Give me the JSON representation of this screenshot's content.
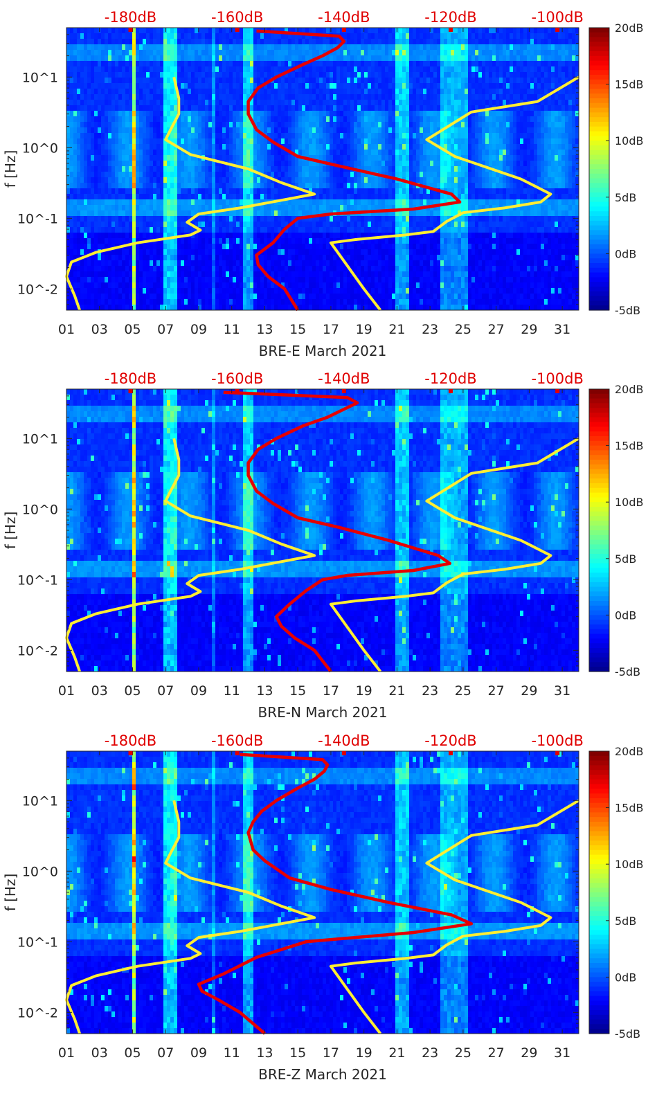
{
  "panels": [
    {
      "id": "east",
      "xlabel": "BRE-E March 2021",
      "ylabel": "f [Hz]",
      "top_labels": [
        "-180dB",
        "-160dB",
        "-140dB",
        "-120dB",
        "-100dB"
      ],
      "x_ticks": [
        "01",
        "03",
        "05",
        "07",
        "09",
        "11",
        "13",
        "15",
        "17",
        "19",
        "21",
        "23",
        "25",
        "27",
        "29",
        "31"
      ],
      "y_ticks": [
        "10^-2",
        "10^-1",
        "10^0",
        "10^1"
      ],
      "colorbar_labels": [
        "20dB",
        "15dB",
        "10dB",
        "5dB",
        "0dB",
        "-5dB"
      ]
    },
    {
      "id": "north",
      "xlabel": "BRE-N March 2021",
      "ylabel": "f [Hz]",
      "top_labels": [
        "-180dB",
        "-160dB",
        "-140dB",
        "-120dB",
        "-100dB"
      ],
      "x_ticks": [
        "01",
        "03",
        "05",
        "07",
        "09",
        "11",
        "13",
        "15",
        "17",
        "19",
        "21",
        "23",
        "25",
        "27",
        "29",
        "31"
      ],
      "y_ticks": [
        "10^-2",
        "10^-1",
        "10^0",
        "10^1"
      ],
      "colorbar_labels": [
        "20dB",
        "15dB",
        "10dB",
        "5dB",
        "0dB",
        "-5dB"
      ]
    },
    {
      "id": "vertical",
      "xlabel": "BRE-Z March 2021",
      "ylabel": "f [Hz]",
      "top_labels": [
        "-180dB",
        "-160dB",
        "-140dB",
        "-120dB",
        "-100dB"
      ],
      "x_ticks": [
        "01",
        "03",
        "05",
        "07",
        "09",
        "11",
        "13",
        "15",
        "17",
        "19",
        "21",
        "23",
        "25",
        "27",
        "29",
        "31"
      ],
      "y_ticks": [
        "10^-2",
        "10^-1",
        "10^0",
        "10^1"
      ],
      "colorbar_labels": [
        "20dB",
        "15dB",
        "10dB",
        "5dB",
        "0dB",
        "-5dB"
      ]
    }
  ],
  "chart_data": [
    {
      "type": "heatmap",
      "title": "",
      "xlabel": "BRE-E March 2021",
      "ylabel": "f [Hz]",
      "x_unit": "day of March 2021",
      "xlim": [
        1,
        32
      ],
      "ylim": [
        0.005,
        50
      ],
      "y_scale": "log",
      "color_range_db": [
        -5,
        20
      ],
      "colormap": "jet",
      "top_axis": {
        "label_values_db": [
          -180,
          -160,
          -140,
          -120,
          -100
        ],
        "range_db": [
          -192,
          -96
        ]
      },
      "overlays": [
        {
          "name": "noise model low (yellow)",
          "color": "#ffee33",
          "points": [
            [
              1.8,
              0.005
            ],
            [
              1.5,
              0.008
            ],
            [
              1.0,
              0.015
            ],
            [
              1.3,
              0.024
            ],
            [
              2.8,
              0.033
            ],
            [
              5.3,
              0.045
            ],
            [
              8.5,
              0.058
            ],
            [
              9.1,
              0.068
            ],
            [
              8.3,
              0.088
            ],
            [
              9.0,
              0.115
            ],
            [
              11.5,
              0.14
            ],
            [
              16.0,
              0.22
            ],
            [
              14.0,
              0.32
            ],
            [
              12.0,
              0.5
            ],
            [
              8.5,
              0.8
            ],
            [
              7.0,
              1.3
            ],
            [
              7.3,
              1.8
            ],
            [
              7.8,
              3.0
            ],
            [
              7.8,
              5.0
            ],
            [
              7.5,
              10.0
            ]
          ]
        },
        {
          "name": "noise model high (yellow)",
          "color": "#ffee33",
          "points": [
            [
              20.0,
              0.005
            ],
            [
              19.0,
              0.01
            ],
            [
              17.0,
              0.045
            ],
            [
              18.5,
              0.05
            ],
            [
              21.5,
              0.058
            ],
            [
              23.2,
              0.065
            ],
            [
              24.0,
              0.09
            ],
            [
              25.0,
              0.12
            ],
            [
              27.5,
              0.14
            ],
            [
              29.7,
              0.17
            ],
            [
              30.3,
              0.22
            ],
            [
              28.5,
              0.36
            ],
            [
              24.5,
              0.75
            ],
            [
              22.8,
              1.3
            ],
            [
              25.5,
              3.2
            ],
            [
              29.5,
              4.5
            ],
            [
              32.0,
              10.0
            ]
          ]
        },
        {
          "name": "reference PSD (red)",
          "color": "#e60000",
          "points": [
            [
              15.0,
              0.005
            ],
            [
              14.2,
              0.01
            ],
            [
              13.2,
              0.015
            ],
            [
              12.6,
              0.022
            ],
            [
              12.5,
              0.03
            ],
            [
              13.5,
              0.045
            ],
            [
              14.2,
              0.07
            ],
            [
              15.0,
              0.1
            ],
            [
              17.0,
              0.115
            ],
            [
              22.0,
              0.135
            ],
            [
              24.8,
              0.17
            ],
            [
              24.3,
              0.22
            ],
            [
              21.0,
              0.36
            ],
            [
              17.5,
              0.55
            ],
            [
              15.0,
              0.75
            ],
            [
              13.5,
              1.2
            ],
            [
              12.5,
              1.8
            ],
            [
              12.0,
              3.0
            ],
            [
              12.0,
              4.5
            ],
            [
              12.6,
              7.0
            ],
            [
              13.7,
              10.0
            ],
            [
              15.3,
              15.0
            ],
            [
              16.5,
              20.0
            ],
            [
              17.4,
              26.0
            ],
            [
              17.8,
              32.0
            ],
            [
              17.5,
              38.0
            ],
            [
              12.5,
              45.0
            ]
          ]
        }
      ]
    },
    {
      "type": "heatmap",
      "title": "",
      "xlabel": "BRE-N March 2021",
      "ylabel": "f [Hz]",
      "x_unit": "day of March 2021",
      "xlim": [
        1,
        32
      ],
      "ylim": [
        0.005,
        50
      ],
      "y_scale": "log",
      "color_range_db": [
        -5,
        20
      ],
      "colormap": "jet",
      "top_axis": {
        "label_values_db": [
          -180,
          -160,
          -140,
          -120,
          -100
        ],
        "range_db": [
          -192,
          -96
        ]
      },
      "overlays": [
        {
          "name": "noise model low (yellow)",
          "color": "#ffee33",
          "points": [
            [
              1.8,
              0.005
            ],
            [
              1.5,
              0.008
            ],
            [
              1.0,
              0.015
            ],
            [
              1.3,
              0.024
            ],
            [
              2.8,
              0.033
            ],
            [
              5.3,
              0.045
            ],
            [
              8.5,
              0.058
            ],
            [
              9.1,
              0.068
            ],
            [
              8.3,
              0.088
            ],
            [
              9.0,
              0.115
            ],
            [
              11.5,
              0.14
            ],
            [
              16.0,
              0.22
            ],
            [
              14.0,
              0.32
            ],
            [
              12.0,
              0.5
            ],
            [
              8.5,
              0.8
            ],
            [
              7.0,
              1.3
            ],
            [
              7.3,
              1.8
            ],
            [
              7.8,
              3.0
            ],
            [
              7.8,
              5.0
            ],
            [
              7.5,
              10.0
            ]
          ]
        },
        {
          "name": "noise model high (yellow)",
          "color": "#ffee33",
          "points": [
            [
              20.0,
              0.005
            ],
            [
              19.0,
              0.01
            ],
            [
              17.0,
              0.045
            ],
            [
              18.5,
              0.05
            ],
            [
              21.5,
              0.058
            ],
            [
              23.2,
              0.065
            ],
            [
              24.0,
              0.09
            ],
            [
              25.0,
              0.12
            ],
            [
              27.5,
              0.14
            ],
            [
              29.7,
              0.17
            ],
            [
              30.3,
              0.22
            ],
            [
              28.5,
              0.36
            ],
            [
              24.5,
              0.75
            ],
            [
              22.8,
              1.3
            ],
            [
              25.5,
              3.2
            ],
            [
              29.5,
              4.5
            ],
            [
              32.0,
              10.0
            ]
          ]
        },
        {
          "name": "reference PSD (red)",
          "color": "#e60000",
          "points": [
            [
              17.0,
              0.005
            ],
            [
              16.0,
              0.01
            ],
            [
              14.8,
              0.015
            ],
            [
              14.0,
              0.022
            ],
            [
              13.7,
              0.03
            ],
            [
              14.5,
              0.045
            ],
            [
              15.5,
              0.07
            ],
            [
              16.5,
              0.1
            ],
            [
              18.0,
              0.115
            ],
            [
              22.0,
              0.135
            ],
            [
              24.2,
              0.17
            ],
            [
              23.5,
              0.22
            ],
            [
              20.5,
              0.36
            ],
            [
              17.5,
              0.55
            ],
            [
              15.0,
              0.75
            ],
            [
              13.5,
              1.2
            ],
            [
              12.5,
              1.8
            ],
            [
              12.0,
              3.0
            ],
            [
              12.0,
              4.5
            ],
            [
              12.6,
              7.0
            ],
            [
              13.7,
              10.0
            ],
            [
              15.3,
              15.0
            ],
            [
              16.8,
              20.0
            ],
            [
              17.8,
              26.0
            ],
            [
              18.6,
              32.0
            ],
            [
              18.0,
              38.0
            ],
            [
              10.5,
              45.0
            ]
          ]
        }
      ]
    },
    {
      "type": "heatmap",
      "title": "",
      "xlabel": "BRE-Z March 2021",
      "ylabel": "f [Hz]",
      "x_unit": "day of March 2021",
      "xlim": [
        1,
        32
      ],
      "ylim": [
        0.005,
        50
      ],
      "y_scale": "log",
      "color_range_db": [
        -5,
        20
      ],
      "colormap": "jet",
      "top_axis": {
        "label_values_db": [
          -180,
          -160,
          -140,
          -120,
          -100
        ],
        "range_db": [
          -192,
          -96
        ]
      },
      "overlays": [
        {
          "name": "noise model low (yellow)",
          "color": "#ffee33",
          "points": [
            [
              1.8,
              0.005
            ],
            [
              1.5,
              0.008
            ],
            [
              1.0,
              0.015
            ],
            [
              1.3,
              0.024
            ],
            [
              2.8,
              0.033
            ],
            [
              5.3,
              0.045
            ],
            [
              8.5,
              0.058
            ],
            [
              9.1,
              0.068
            ],
            [
              8.3,
              0.088
            ],
            [
              9.0,
              0.115
            ],
            [
              11.5,
              0.14
            ],
            [
              16.0,
              0.22
            ],
            [
              14.0,
              0.32
            ],
            [
              12.0,
              0.5
            ],
            [
              8.5,
              0.8
            ],
            [
              7.0,
              1.3
            ],
            [
              7.3,
              1.8
            ],
            [
              7.8,
              3.0
            ],
            [
              7.8,
              5.0
            ],
            [
              7.5,
              10.0
            ]
          ]
        },
        {
          "name": "noise model high (yellow)",
          "color": "#ffee33",
          "points": [
            [
              20.0,
              0.005
            ],
            [
              19.0,
              0.01
            ],
            [
              17.0,
              0.045
            ],
            [
              18.5,
              0.05
            ],
            [
              21.5,
              0.058
            ],
            [
              23.2,
              0.065
            ],
            [
              24.0,
              0.09
            ],
            [
              25.0,
              0.12
            ],
            [
              27.5,
              0.14
            ],
            [
              29.7,
              0.17
            ],
            [
              30.3,
              0.22
            ],
            [
              28.5,
              0.36
            ],
            [
              24.5,
              0.75
            ],
            [
              22.8,
              1.3
            ],
            [
              25.5,
              3.2
            ],
            [
              29.5,
              4.5
            ],
            [
              32.0,
              10.0
            ]
          ]
        },
        {
          "name": "reference PSD (red)",
          "color": "#e60000",
          "points": [
            [
              13.0,
              0.005
            ],
            [
              11.5,
              0.01
            ],
            [
              10.2,
              0.015
            ],
            [
              9.2,
              0.02
            ],
            [
              9.0,
              0.025
            ],
            [
              10.5,
              0.035
            ],
            [
              12.5,
              0.06
            ],
            [
              15.5,
              0.1
            ],
            [
              18.5,
              0.115
            ],
            [
              22.0,
              0.135
            ],
            [
              25.5,
              0.18
            ],
            [
              24.3,
              0.24
            ],
            [
              20.5,
              0.36
            ],
            [
              17.0,
              0.55
            ],
            [
              14.5,
              0.8
            ],
            [
              13.0,
              1.4
            ],
            [
              12.3,
              2.0
            ],
            [
              12.0,
              3.5
            ],
            [
              12.3,
              5.0
            ],
            [
              12.8,
              7.0
            ],
            [
              13.7,
              10.0
            ],
            [
              15.0,
              15.0
            ],
            [
              16.0,
              20.0
            ],
            [
              16.6,
              26.0
            ],
            [
              16.8,
              32.0
            ],
            [
              16.5,
              38.0
            ],
            [
              11.5,
              45.0
            ]
          ]
        }
      ]
    }
  ]
}
